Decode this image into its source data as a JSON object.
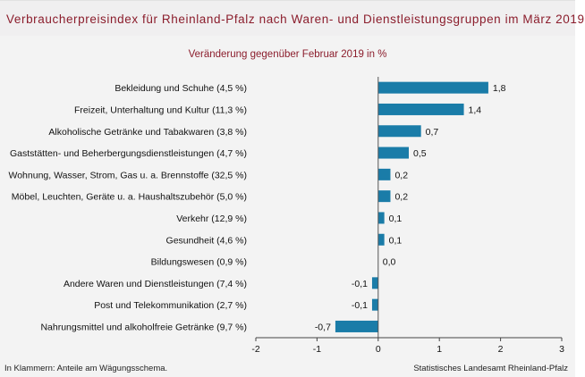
{
  "header": {
    "title": "Verbraucherpreisindex für Rheinland-Pfalz nach Waren- und Dienstleistungsgruppen im März 2019"
  },
  "footer": {
    "note": "In Klammern: Anteile am Wägungsschema.",
    "source": "Statistisches Landesamt Rheinland-Pfalz"
  },
  "colors": {
    "bar": "#1a7ca8",
    "title": "#8b1d2c"
  },
  "chart_data": {
    "type": "bar",
    "orientation": "horizontal",
    "title": "Veränderung gegenüber Februar 2019 in %",
    "categories": [
      "Bekleidung und Schuhe (4,5 %)",
      "Freizeit, Unterhaltung und Kultur (11,3 %)",
      "Alkoholische Getränke und Tabakwaren (3,8 %)",
      "Gaststätten- und Beherbergungsdienstleistungen (4,7 %)",
      "Wohnung, Wasser, Strom, Gas u. a. Brennstoffe (32,5 %)",
      "Möbel, Leuchten, Geräte u. a. Haushaltszubehör (5,0 %)",
      "Verkehr (12,9 %)",
      "Gesundheit (4,6 %)",
      "Bildungswesen (0,9 %)",
      "Andere Waren und Dienstleistungen (7,4 %)",
      "Post und Telekommunikation (2,7 %)",
      "Nahrungsmittel und alkoholfreie Getränke (9,7 %)"
    ],
    "values": [
      1.8,
      1.4,
      0.7,
      0.5,
      0.2,
      0.2,
      0.1,
      0.1,
      0.0,
      -0.1,
      -0.1,
      -0.7
    ],
    "value_labels": [
      "1,8",
      "1,4",
      "0,7",
      "0,5",
      "0,2",
      "0,2",
      "0,1",
      "0,1",
      "0,0",
      "-0,1",
      "-0,1",
      "-0,7"
    ],
    "xlim": [
      -2,
      3
    ],
    "xticks": [
      -2,
      -1,
      0,
      1,
      2,
      3
    ],
    "xtick_labels": [
      "-2",
      "-1",
      "0",
      "1",
      "2",
      "3"
    ],
    "grid": false,
    "legend": "none"
  }
}
